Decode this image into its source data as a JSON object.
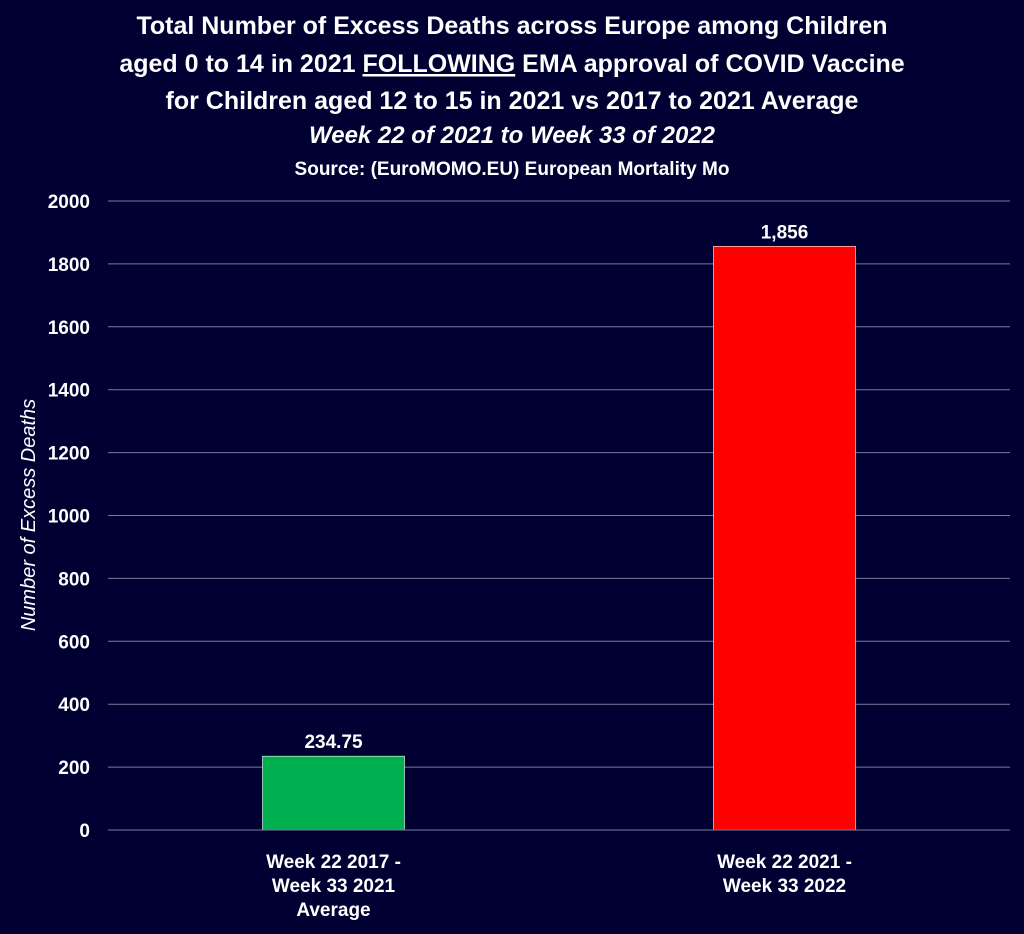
{
  "chart_data": {
    "type": "bar",
    "title_lines": [
      "Total Number of Excess Deaths across Europe among Children",
      "aged 0 to 14 in 2021 ",
      "FOLLOWING",
      " EMA approval of COVID Vaccine",
      "for Children aged 12 to 15 in 2021 vs 2017 to 2021 Average"
    ],
    "subtitle": "Week 22 of 2021 to Week 33 of 2022",
    "source": "Source: (EuroMOMO.EU) European Mortality Mo",
    "ylabel": "Number of Excess Deaths",
    "xlabel": "",
    "ylim": [
      0,
      2000
    ],
    "yticks": [
      "0",
      "200",
      "400",
      "600",
      "800",
      "1000",
      "1200",
      "1400",
      "1600",
      "1800",
      "2000"
    ],
    "grid": true,
    "categories": [
      [
        "Week 22 2017 -",
        "Week 33 2021",
        "Average"
      ],
      [
        "Week 22 2021 -",
        "Week 33 2022"
      ]
    ],
    "values": [
      234.75,
      1856
    ],
    "data_labels": [
      "234.75",
      "1,856"
    ],
    "colors": [
      "#00b050",
      "#ff0000"
    ]
  }
}
